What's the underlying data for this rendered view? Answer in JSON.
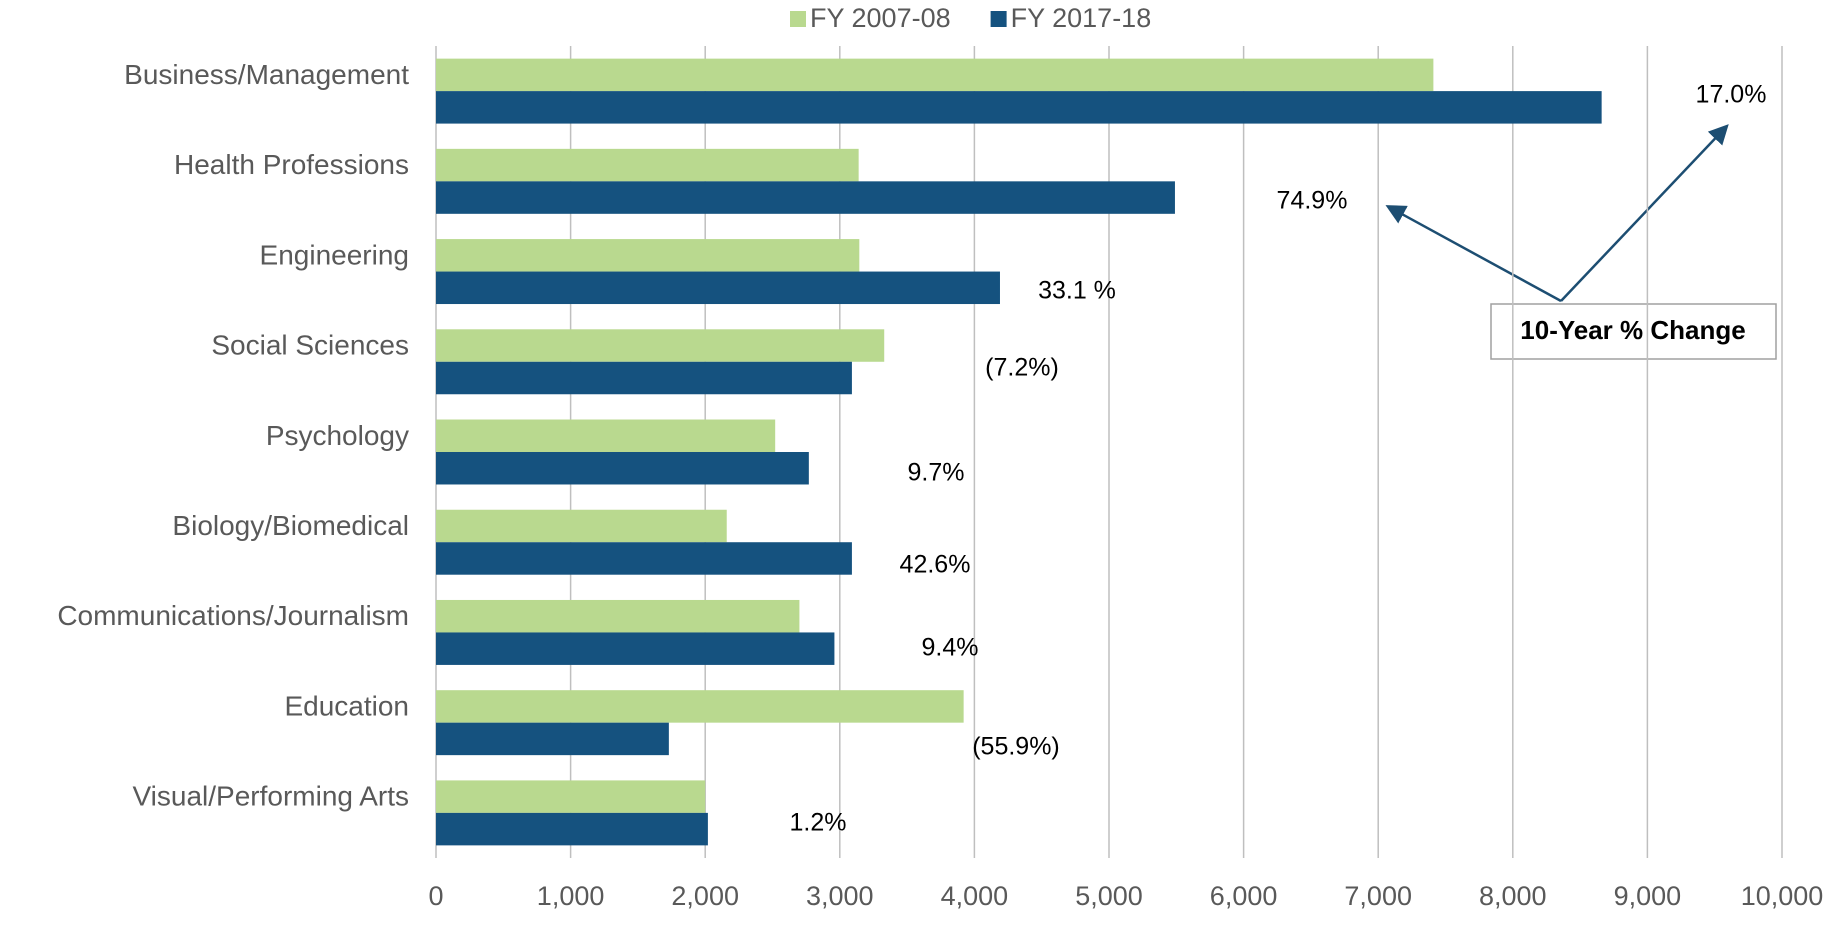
{
  "chart_data": {
    "type": "bar",
    "orientation": "horizontal",
    "categories": [
      "Business/Management",
      "Health Professions",
      "Engineering",
      "Social Sciences",
      "Psychology",
      "Biology/Biomedical",
      "Communications/Journalism",
      "Education",
      "Visual/Performing Arts"
    ],
    "series": [
      {
        "name": "FY 2007-08",
        "color": "#b9d98f",
        "values": [
          7410,
          3140,
          3145,
          3330,
          2520,
          2160,
          2700,
          3920,
          2000
        ]
      },
      {
        "name": "FY 2017-18",
        "color": "#15527f",
        "values": [
          8660,
          5490,
          4190,
          3090,
          2770,
          3090,
          2960,
          1730,
          2020
        ]
      }
    ],
    "xlim": [
      0,
      10000
    ],
    "xticks": [
      0,
      {
        "value": 1000,
        "label": "1,000"
      },
      {
        "value": 2000,
        "label": "2,000"
      },
      {
        "value": 3000,
        "label": "3,000"
      },
      {
        "value": 4000,
        "label": "4,000"
      },
      {
        "value": 5000,
        "label": "5,000"
      },
      {
        "value": 6000,
        "label": "6,000"
      },
      {
        "value": 7000,
        "label": "7,000"
      },
      {
        "value": 8000,
        "label": "8,000"
      },
      {
        "value": 9000,
        "label": "9,000"
      },
      {
        "value": 10000,
        "label": "10,000"
      }
    ],
    "grid": true,
    "legend": "top",
    "annotations": [
      "17.0%",
      "74.9%",
      "33.1 %",
      "(7.2%)",
      "9.7%",
      "42.6%",
      "9.4%",
      "(55.9%)",
      "1.2%"
    ],
    "callout": "10-Year % Change"
  }
}
